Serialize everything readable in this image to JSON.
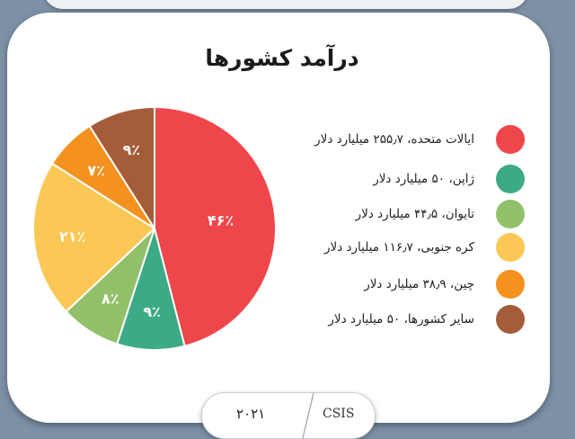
{
  "chart_data": {
    "type": "pie",
    "title": "درآمد کشورها",
    "categories": [
      "ایالات متحده، ۲۵۵٫۷ میلیارد دلار",
      "ژاپن، ۵۰ میلیارد دلار",
      "تایوان، ۴۴٫۵ میلیارد دلار",
      "کره جنوبی، ۱۱۶٫۷ میلیارد دلار",
      "چین، ۳۸٫۹ میلیارد دلار",
      "سایر کشورها، ۵۰ میلیارد دلار"
    ],
    "values": [
      46,
      9,
      8,
      21,
      7,
      9
    ],
    "data_labels": [
      "۴۶٪",
      "۹٪",
      "۸٪",
      "۲۱٪",
      "۷٪",
      "۹٪"
    ],
    "colors": [
      "#ef464b",
      "#3caa86",
      "#92c06a",
      "#fbc855",
      "#f5921f",
      "#a55c38"
    ],
    "legend_position": "right",
    "grid": false
  },
  "footer": {
    "year": "۲۰۲۱",
    "source": "CSIS"
  }
}
